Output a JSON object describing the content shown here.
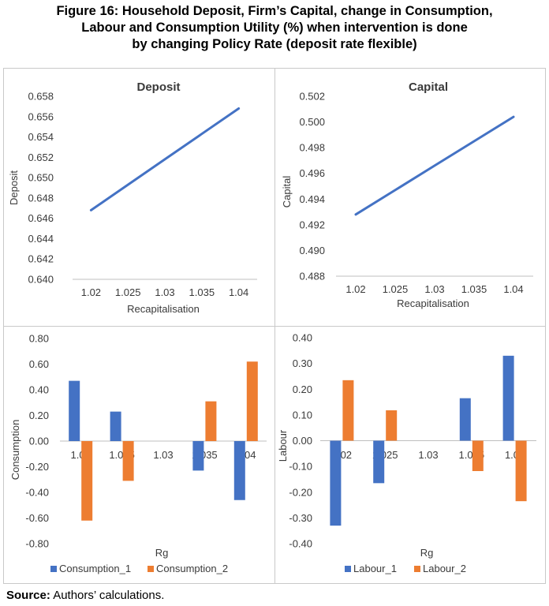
{
  "figure": {
    "title_lines": [
      "Figure 16: Household Deposit, Firm’s Capital, change in Consumption,",
      "Labour and Consumption Utility (%) when intervention is done",
      "by changing Policy Rate (deposit rate flexible)"
    ],
    "source_label": "Source:",
    "source_text": " Authors’ calculations."
  },
  "colors": {
    "blue": "#4472C4",
    "orange": "#ED7D31",
    "axis": "#bfbfbf",
    "text": "#3a3a3a"
  },
  "chart_data": [
    {
      "type": "line",
      "title": "Deposit",
      "xlabel": "Recapitalisation",
      "ylabel": "Deposit",
      "categories": [
        "1.02",
        "1.025",
        "1.03",
        "1.035",
        "1.04"
      ],
      "ylim": [
        0.64,
        0.658
      ],
      "yticks": [
        "0.640",
        "0.642",
        "0.644",
        "0.646",
        "0.648",
        "0.650",
        "0.652",
        "0.654",
        "0.656",
        "0.658"
      ],
      "series": [
        {
          "values": [
            0.6468,
            0.6493,
            0.6518,
            0.6543,
            0.6568
          ]
        }
      ]
    },
    {
      "type": "line",
      "title": "Capital",
      "xlabel": "Recapitalisation",
      "ylabel": "Capital",
      "categories": [
        "1.02",
        "1.025",
        "1.03",
        "1.035",
        "1.04"
      ],
      "ylim": [
        0.488,
        0.502
      ],
      "yticks": [
        "0.488",
        "0.490",
        "0.492",
        "0.494",
        "0.496",
        "0.498",
        "0.500",
        "0.502"
      ],
      "series": [
        {
          "values": [
            0.4928,
            0.4947,
            0.4966,
            0.4985,
            0.5004
          ]
        }
      ]
    },
    {
      "type": "bar",
      "title": "",
      "xlabel": "Rg",
      "ylabel": "Consumption",
      "categories": [
        "1.02",
        "1.025",
        "1.03",
        "1.035",
        "1.04"
      ],
      "ylim": [
        -0.8,
        0.8
      ],
      "yticks": [
        "-0.80",
        "-0.60",
        "-0.40",
        "-0.20",
        "0.00",
        "0.20",
        "0.40",
        "0.60",
        "0.80"
      ],
      "legend": "bottom",
      "series": [
        {
          "name": "Consumption_1",
          "values": [
            0.47,
            0.23,
            0.0,
            -0.23,
            -0.46
          ]
        },
        {
          "name": "Consumption_2",
          "values": [
            -0.62,
            -0.31,
            0.0,
            0.31,
            0.62
          ]
        }
      ]
    },
    {
      "type": "bar",
      "title": "",
      "xlabel": "Rg",
      "ylabel": "Labour",
      "categories": [
        "1.02",
        "1.025",
        "1.03",
        "1.035",
        "1.04"
      ],
      "ylim": [
        -0.4,
        0.4
      ],
      "yticks": [
        "-0.40",
        "-0.30",
        "-0.20",
        "-0.10",
        "0.00",
        "0.10",
        "0.20",
        "0.30",
        "0.40"
      ],
      "legend": "bottom",
      "series": [
        {
          "name": "Labour_1",
          "values": [
            -0.33,
            -0.165,
            0.0,
            0.165,
            0.33
          ]
        },
        {
          "name": "Labour_2",
          "values": [
            0.235,
            0.118,
            0.0,
            -0.118,
            -0.235
          ]
        }
      ]
    }
  ]
}
